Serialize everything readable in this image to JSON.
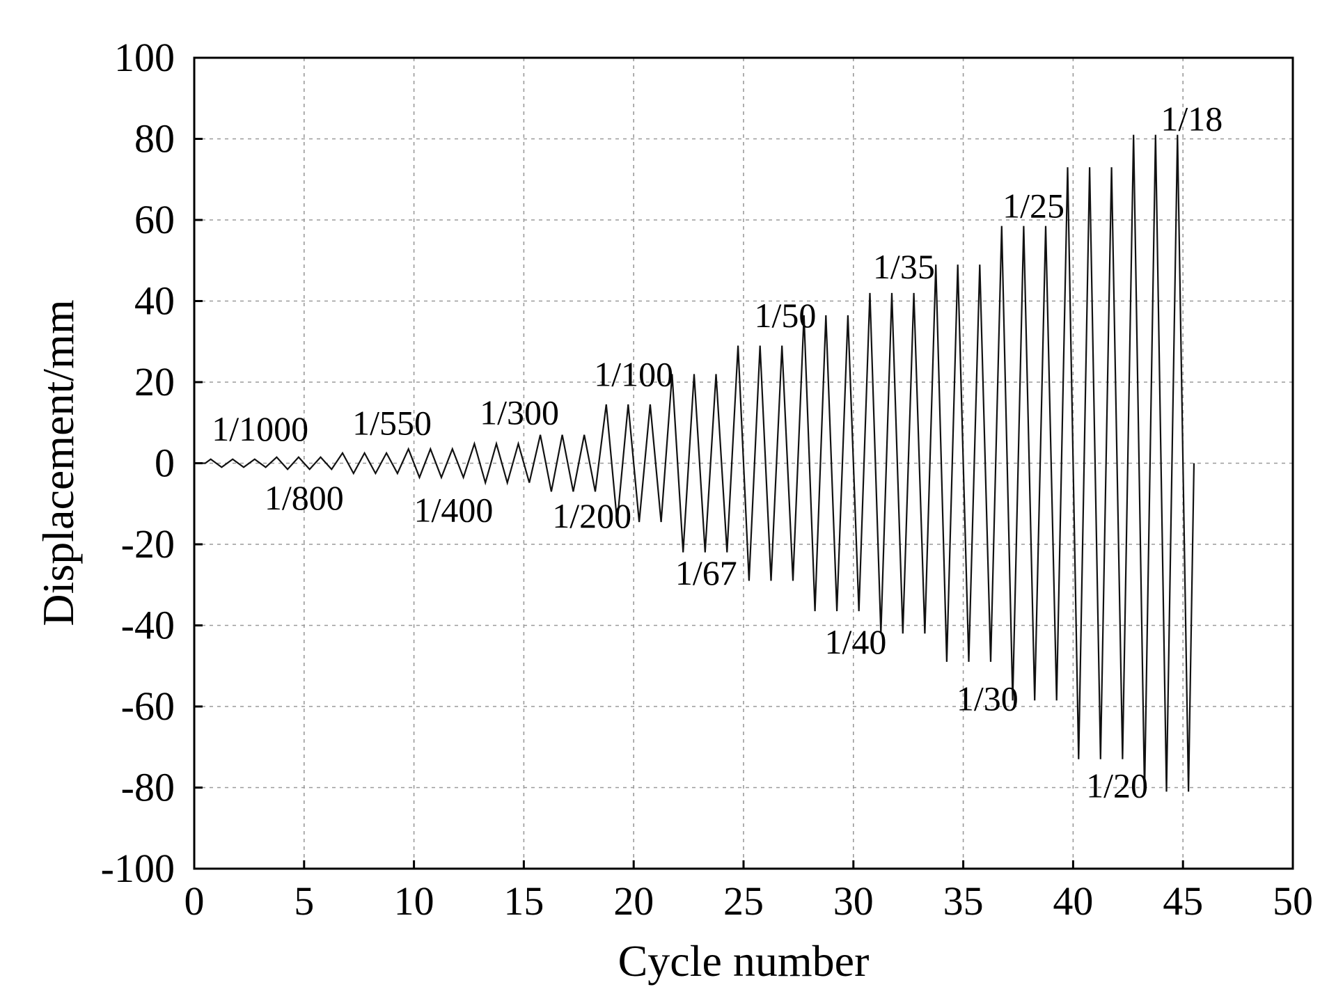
{
  "chart_data": {
    "type": "line",
    "title": "",
    "xlabel": "Cycle number",
    "ylabel": "Displacement/mm",
    "xlim": [
      0,
      50
    ],
    "ylim": [
      -100,
      100
    ],
    "xticks": [
      0,
      5,
      10,
      15,
      20,
      25,
      30,
      35,
      40,
      45,
      50
    ],
    "yticks": [
      100,
      80,
      60,
      40,
      20,
      0,
      -20,
      -40,
      -60,
      -80,
      -100
    ],
    "grid": true,
    "legend": "none",
    "line_color": "#111111",
    "loading_levels": [
      {
        "drift": "1/1000",
        "amplitude": 1.0,
        "cycles": 3
      },
      {
        "drift": "1/800",
        "amplitude": 1.5,
        "cycles": 3
      },
      {
        "drift": "1/550",
        "amplitude": 2.5,
        "cycles": 3
      },
      {
        "drift": "1/400",
        "amplitude": 3.5,
        "cycles": 3
      },
      {
        "drift": "1/300",
        "amplitude": 4.8,
        "cycles": 3
      },
      {
        "drift": "1/200",
        "amplitude": 7.0,
        "cycles": 3
      },
      {
        "drift": "1/100",
        "amplitude": 14.5,
        "cycles": 3
      },
      {
        "drift": "1/67",
        "amplitude": 22.0,
        "cycles": 3
      },
      {
        "drift": "1/50",
        "amplitude": 29.0,
        "cycles": 3
      },
      {
        "drift": "1/40",
        "amplitude": 36.5,
        "cycles": 3
      },
      {
        "drift": "1/35",
        "amplitude": 42.0,
        "cycles": 3
      },
      {
        "drift": "1/30",
        "amplitude": 49.0,
        "cycles": 3
      },
      {
        "drift": "1/25",
        "amplitude": 58.5,
        "cycles": 3
      },
      {
        "drift": "1/20",
        "amplitude": 73.0,
        "cycles": 3
      },
      {
        "drift": "1/18",
        "amplitude": 81.0,
        "cycles": 3
      }
    ],
    "annotations": [
      {
        "text": "1/1000",
        "x": 3.0,
        "y": 8.5
      },
      {
        "text": "1/800",
        "x": 5.0,
        "y": -8.5
      },
      {
        "text": "1/550",
        "x": 9.0,
        "y": 10.0
      },
      {
        "text": "1/400",
        "x": 11.8,
        "y": -11.5
      },
      {
        "text": "1/300",
        "x": 14.8,
        "y": 12.5
      },
      {
        "text": "1/200",
        "x": 18.1,
        "y": -13.0
      },
      {
        "text": "1/100",
        "x": 20.0,
        "y": 22.0
      },
      {
        "text": "1/67",
        "x": 23.3,
        "y": -27.0
      },
      {
        "text": "1/50",
        "x": 26.9,
        "y": 36.5
      },
      {
        "text": "1/40",
        "x": 30.1,
        "y": -44.0
      },
      {
        "text": "1/35",
        "x": 32.3,
        "y": 48.5
      },
      {
        "text": "1/30",
        "x": 36.1,
        "y": -58.0
      },
      {
        "text": "1/25",
        "x": 38.2,
        "y": 63.5
      },
      {
        "text": "1/20",
        "x": 42.0,
        "y": -79.5
      },
      {
        "text": "1/18",
        "x": 45.4,
        "y": 85.0
      }
    ]
  }
}
